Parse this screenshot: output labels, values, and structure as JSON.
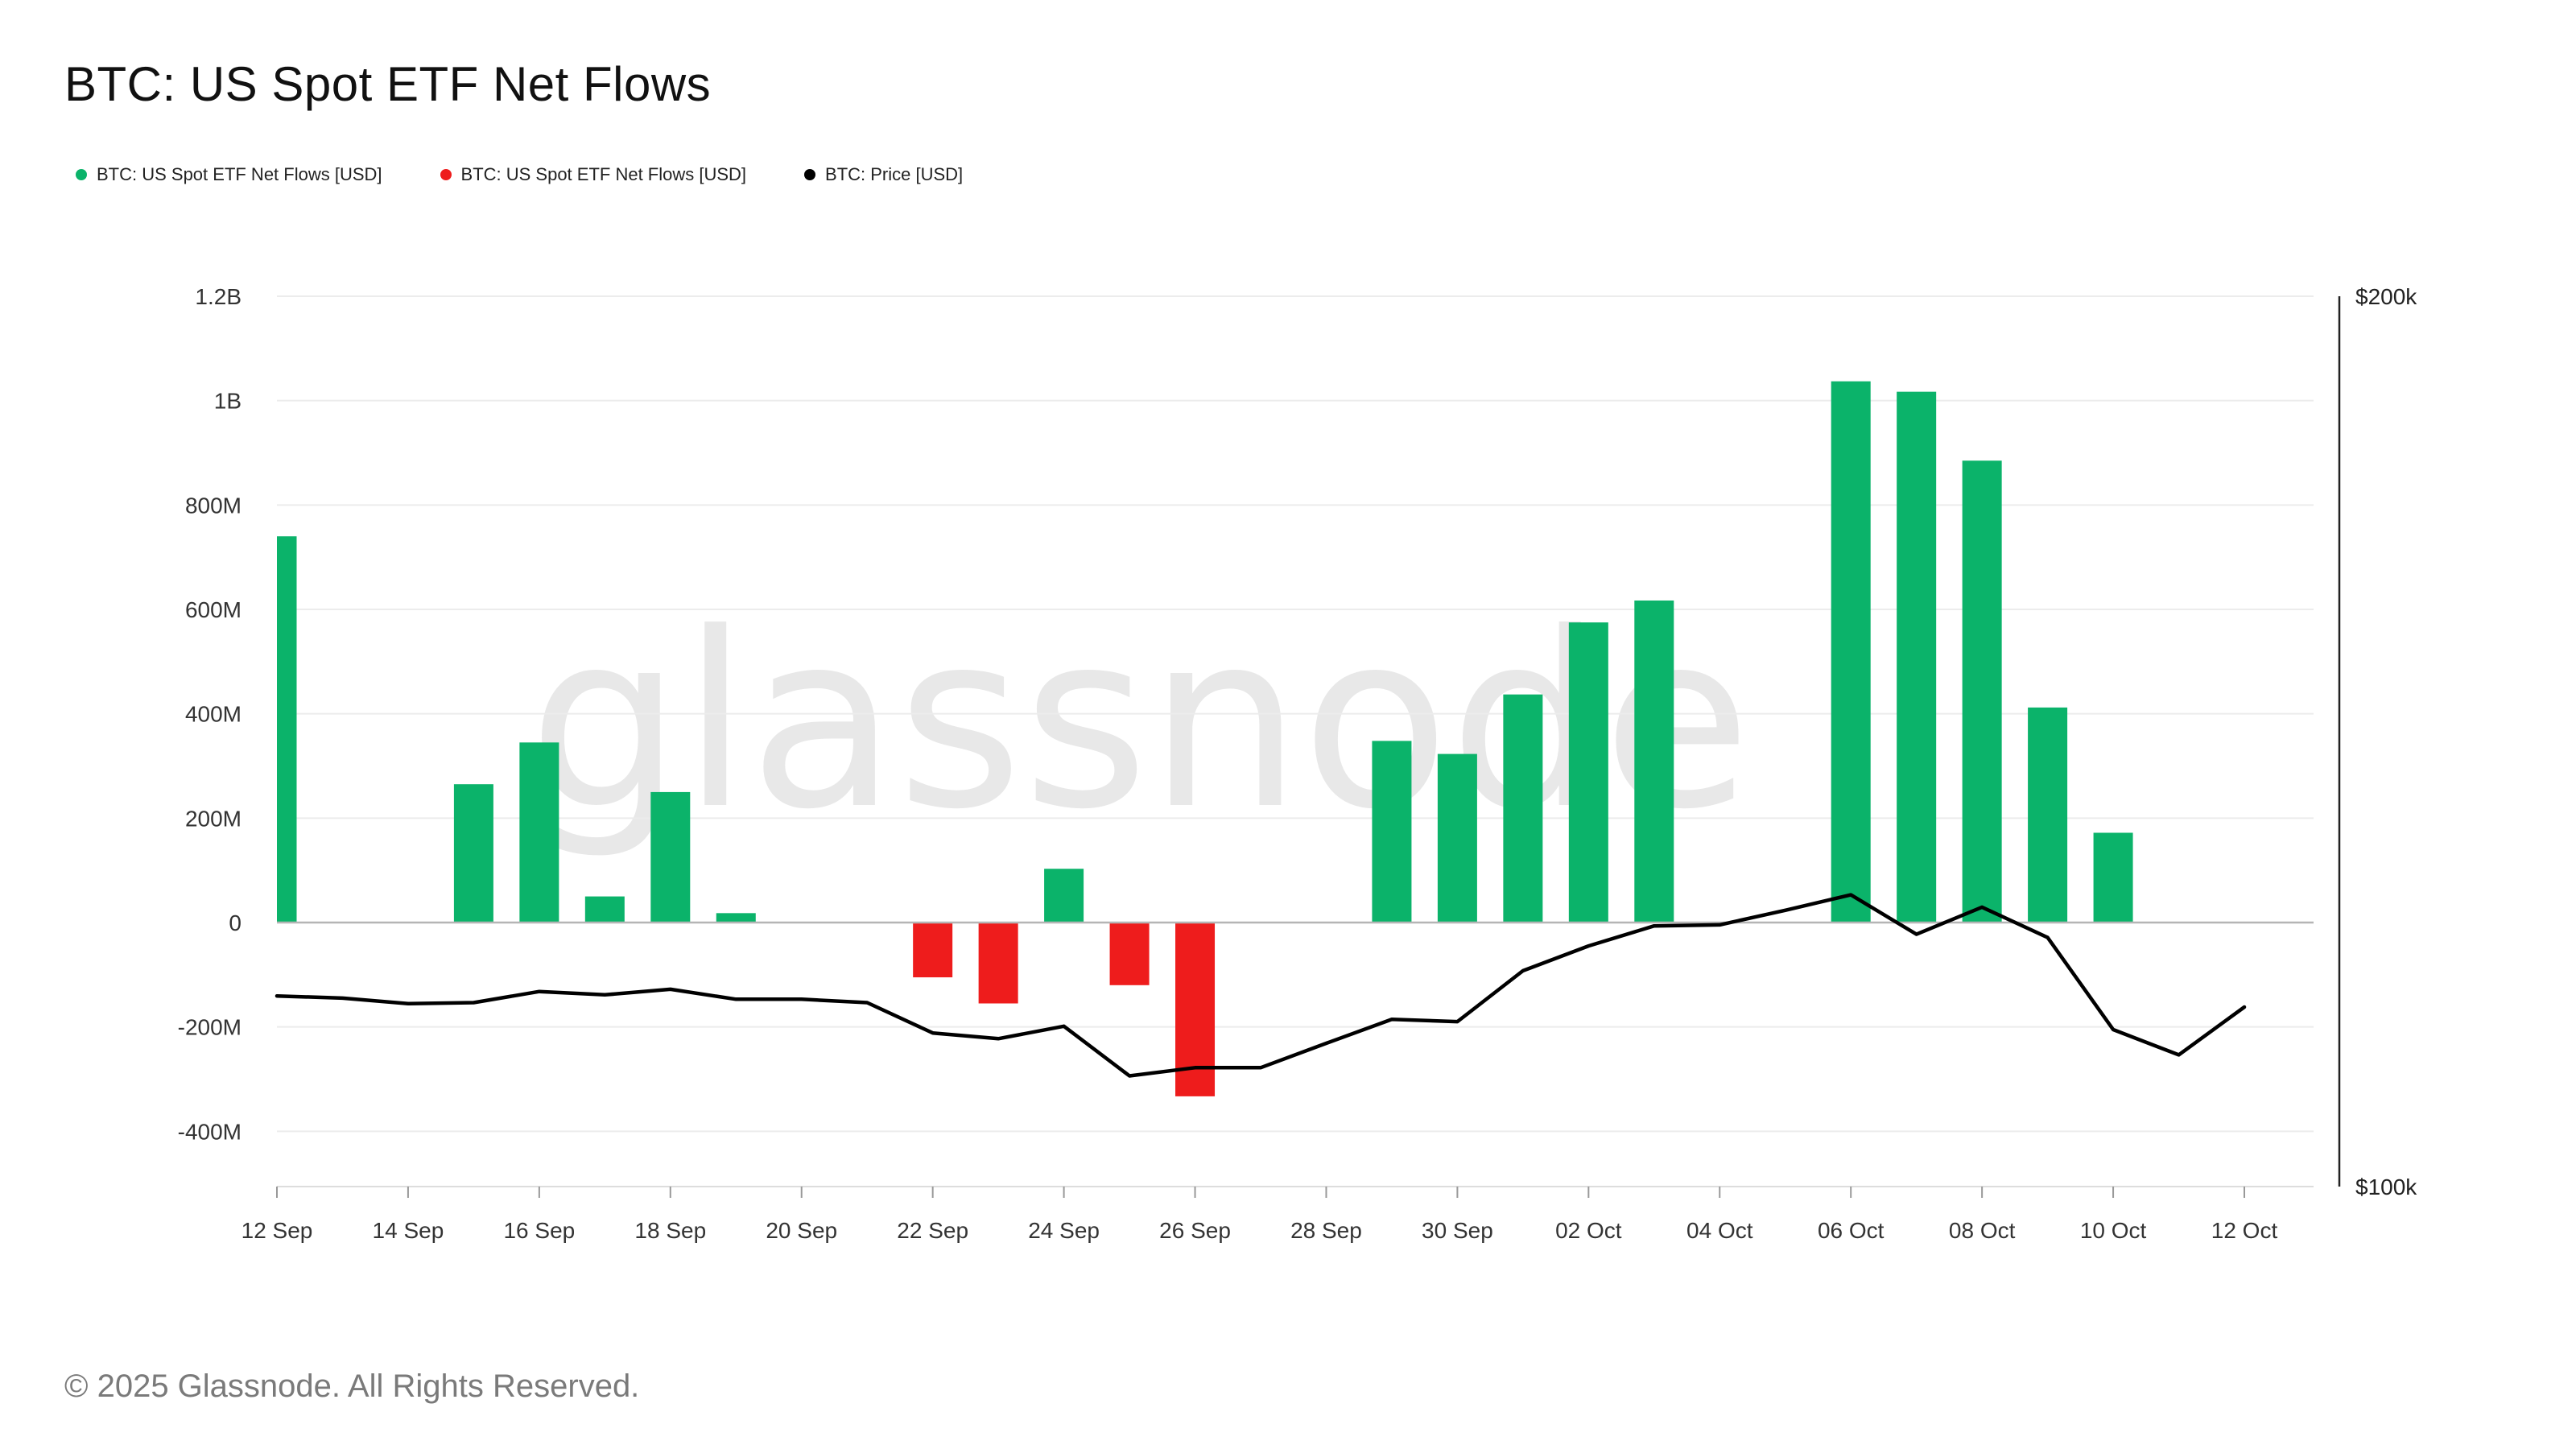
{
  "title": "BTC: US Spot ETF Net Flows",
  "legend": [
    {
      "label": "BTC: US Spot ETF Net Flows [USD]",
      "color": "#0bb36a"
    },
    {
      "label": "BTC: US Spot ETF Net Flows [USD]",
      "color": "#ee1c1c"
    },
    {
      "label": "BTC: Price [USD]",
      "color": "#000000"
    }
  ],
  "watermark": "glassnode",
  "footer": "© 2025 Glassnode. All Rights Reserved.",
  "colors": {
    "positive": "#0bb36a",
    "negative": "#ee1c1c",
    "price": "#000000",
    "grid": "#ececec",
    "axis": "#999999"
  },
  "chart_data": {
    "type": "bar",
    "title": "BTC: US Spot ETF Net Flows",
    "categories": [
      "12 Sep",
      "13 Sep",
      "14 Sep",
      "15 Sep",
      "16 Sep",
      "17 Sep",
      "18 Sep",
      "19 Sep",
      "20 Sep",
      "21 Sep",
      "22 Sep",
      "23 Sep",
      "24 Sep",
      "25 Sep",
      "26 Sep",
      "27 Sep",
      "28 Sep",
      "29 Sep",
      "30 Sep",
      "01 Oct",
      "02 Oct",
      "03 Oct",
      "04 Oct",
      "05 Oct",
      "06 Oct",
      "07 Oct",
      "08 Oct",
      "09 Oct",
      "10 Oct",
      "11 Oct",
      "12 Oct"
    ],
    "x_tick_labels": [
      "12 Sep",
      "14 Sep",
      "16 Sep",
      "18 Sep",
      "20 Sep",
      "22 Sep",
      "24 Sep",
      "26 Sep",
      "28 Sep",
      "30 Sep",
      "02 Oct",
      "04 Oct",
      "06 Oct",
      "08 Oct",
      "10 Oct",
      "12 Oct"
    ],
    "series": [
      {
        "name": "BTC: US Spot ETF Net Flows [USD]",
        "unit": "USD",
        "values": [
          740000000,
          null,
          null,
          265000000,
          345000000,
          50000000,
          250000000,
          18000000,
          null,
          null,
          -105000000,
          -155000000,
          103000000,
          -120000000,
          -333000000,
          null,
          null,
          348000000,
          323000000,
          437000000,
          575000000,
          617000000,
          null,
          null,
          1037000000,
          1017000000,
          885000000,
          412000000,
          172000000,
          null,
          null
        ]
      },
      {
        "name": "BTC: Price [USD]",
        "unit": "USD",
        "axis": "right",
        "values": [
          116000,
          115800,
          115300,
          115400,
          116400,
          116100,
          116600,
          115700,
          115700,
          115400,
          112700,
          112200,
          113300,
          109000,
          109700,
          109700,
          111800,
          113900,
          113700,
          118300,
          120600,
          122500,
          122600,
          124000,
          125500,
          121700,
          124300,
          121400,
          113000,
          110800,
          115000
        ]
      }
    ],
    "y_ticks": [
      "1.2B",
      "1B",
      "800M",
      "600M",
      "400M",
      "200M",
      "0",
      "-200M",
      "-400M"
    ],
    "y_tick_values": [
      1200000000,
      1000000000,
      800000000,
      600000000,
      400000000,
      200000000,
      0,
      -200000000,
      -400000000
    ],
    "ylim": [
      -500000000,
      1200000000
    ],
    "y2_ticks": [
      "$200k",
      "$100k"
    ],
    "y2lim": [
      100000,
      200000
    ],
    "y2_scale": "log",
    "grid": true,
    "legend_position": "top-left"
  }
}
